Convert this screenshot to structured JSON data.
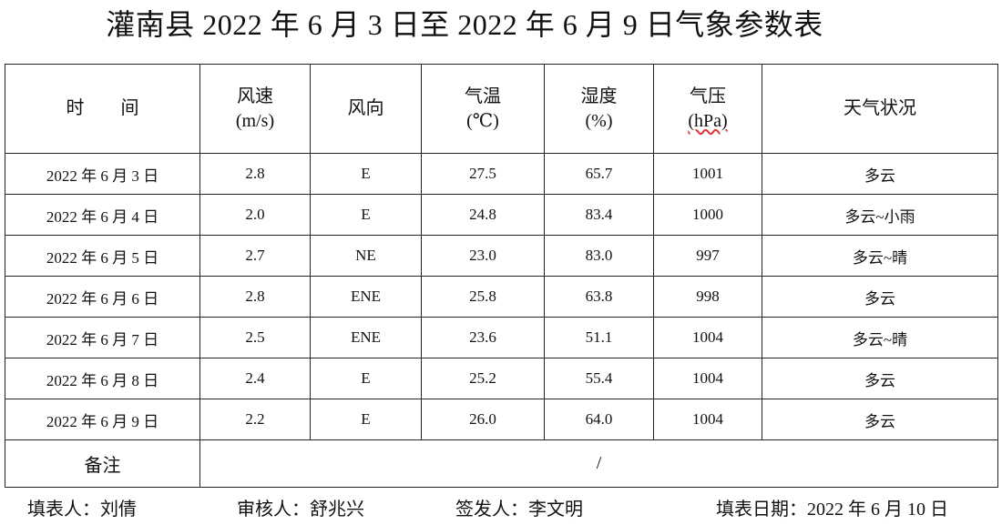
{
  "title": "灌南县 2022 年 6 月 3 日至 2022 年 6 月 9 日气象参数表",
  "table": {
    "header": [
      [
        "时　　间"
      ],
      [
        "风速",
        "(m/s)"
      ],
      [
        "风向"
      ],
      [
        "气温",
        "(℃)"
      ],
      [
        "湿度",
        "(%)"
      ],
      [
        "气压",
        "(hPa)"
      ],
      [
        "天气状况"
      ]
    ],
    "rows": [
      [
        "2022 年 6 月 3 日",
        "2.8",
        "E",
        "27.5",
        "65.7",
        "1001",
        "多云"
      ],
      [
        "2022 年 6 月 4 日",
        "2.0",
        "E",
        "24.8",
        "83.4",
        "1000",
        "多云~小雨"
      ],
      [
        "2022 年 6 月 5 日",
        "2.7",
        "NE",
        "23.0",
        "83.0",
        "997",
        "多云~晴"
      ],
      [
        "2022 年 6 月 6 日",
        "2.8",
        "ENE",
        "25.8",
        "63.8",
        "998",
        "多云"
      ],
      [
        "2022 年 6 月 7 日",
        "2.5",
        "ENE",
        "23.6",
        "51.1",
        "1004",
        "多云~晴"
      ],
      [
        "2022 年 6 月 8 日",
        "2.4",
        "E",
        "25.2",
        "55.4",
        "1004",
        "多云"
      ],
      [
        "2022 年 6 月 9 日",
        "2.2",
        "E",
        "26.0",
        "64.0",
        "1004",
        "多云"
      ]
    ],
    "remark": {
      "label": "备注",
      "value": "/"
    }
  },
  "footer": [
    "填表人：刘倩",
    "审核人：舒兆兴",
    "签发人：李文明",
    "填表日期：2022 年 6 月 10 日"
  ]
}
